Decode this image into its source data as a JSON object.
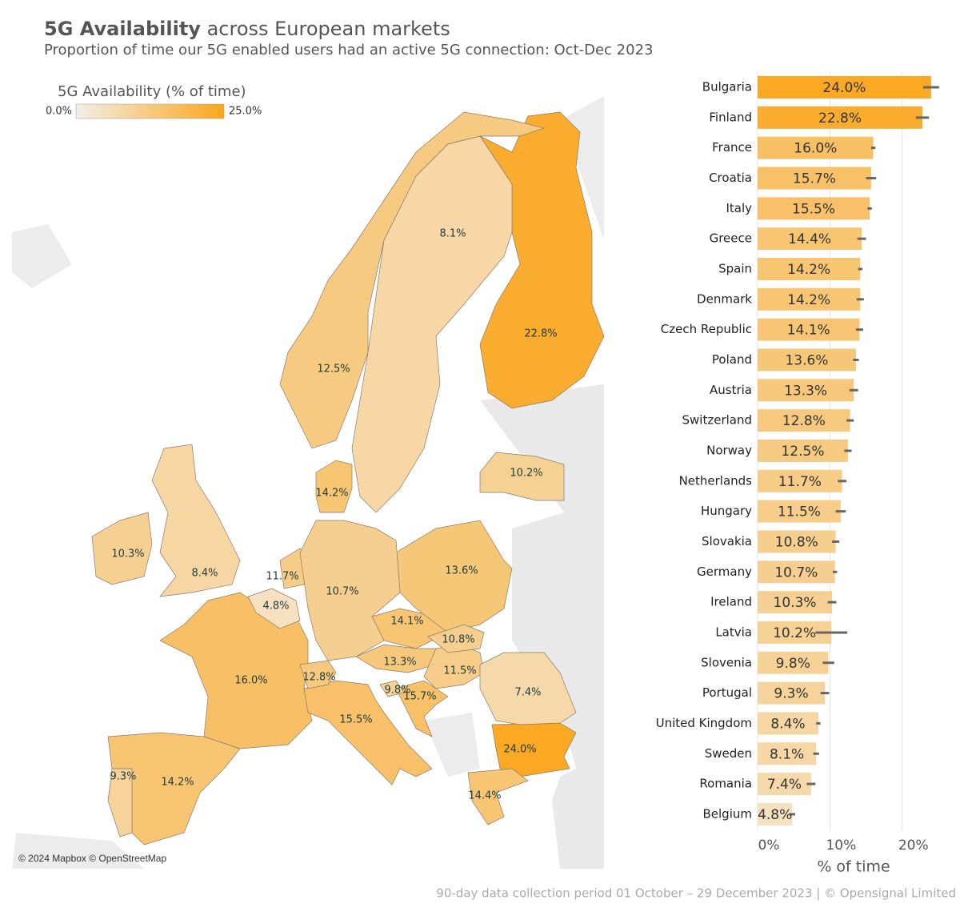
{
  "chart_data": {
    "type": "bar",
    "title_bold": "5G Availability",
    "title_rest": "across European markets",
    "subtitle": "Proportion of time our 5G enabled users had an active 5G connection: Oct-Dec 2023",
    "categories": [
      "Bulgaria",
      "Finland",
      "France",
      "Croatia",
      "Italy",
      "Greece",
      "Spain",
      "Denmark",
      "Czech Republic",
      "Poland",
      "Austria",
      "Switzerland",
      "Norway",
      "Netherlands",
      "Hungary",
      "Slovakia",
      "Germany",
      "Ireland",
      "Latvia",
      "Slovenia",
      "Portugal",
      "United Kingdom",
      "Sweden",
      "Romania",
      "Belgium"
    ],
    "values": [
      24.0,
      22.8,
      16.0,
      15.7,
      15.5,
      14.4,
      14.2,
      14.2,
      14.1,
      13.6,
      13.3,
      12.8,
      12.5,
      11.7,
      11.5,
      10.8,
      10.7,
      10.3,
      10.2,
      9.8,
      9.3,
      8.4,
      8.1,
      7.4,
      4.8
    ],
    "value_labels": [
      "24.0%",
      "22.8%",
      "16.0%",
      "15.7%",
      "15.5%",
      "14.4%",
      "14.2%",
      "14.2%",
      "14.1%",
      "13.6%",
      "13.3%",
      "12.8%",
      "12.5%",
      "11.7%",
      "11.5%",
      "10.8%",
      "10.7%",
      "10.3%",
      "10.2%",
      "9.8%",
      "9.3%",
      "8.4%",
      "8.1%",
      "7.4%",
      "4.8%"
    ],
    "errors": [
      1.1,
      0.9,
      0.3,
      0.7,
      0.3,
      0.6,
      0.3,
      0.5,
      0.5,
      0.4,
      0.6,
      0.5,
      0.5,
      0.6,
      0.7,
      0.5,
      0.3,
      0.6,
      2.2,
      0.8,
      0.6,
      0.3,
      0.4,
      0.6,
      0.4
    ],
    "xlim": [
      0,
      27
    ],
    "xticks": [
      {
        "value": 0,
        "label": "0%"
      },
      {
        "value": 10,
        "label": "10%"
      },
      {
        "value": 20,
        "label": "20%"
      }
    ],
    "xlabel": "% of time",
    "error_color": "#666666",
    "color_scale": {
      "title": "5G Availability (% of time)",
      "min": {
        "value": 0,
        "label": "0.0%"
      },
      "max": {
        "value": 25,
        "label": "25.0%"
      },
      "colors": [
        "#f3eee6",
        "#fba61c"
      ]
    },
    "map_attribution": "© 2024 Mapbox © OpenStreetMap",
    "footer": "90-day data collection period 01 October – 29 December 2023 | © Opensignal Limited"
  }
}
